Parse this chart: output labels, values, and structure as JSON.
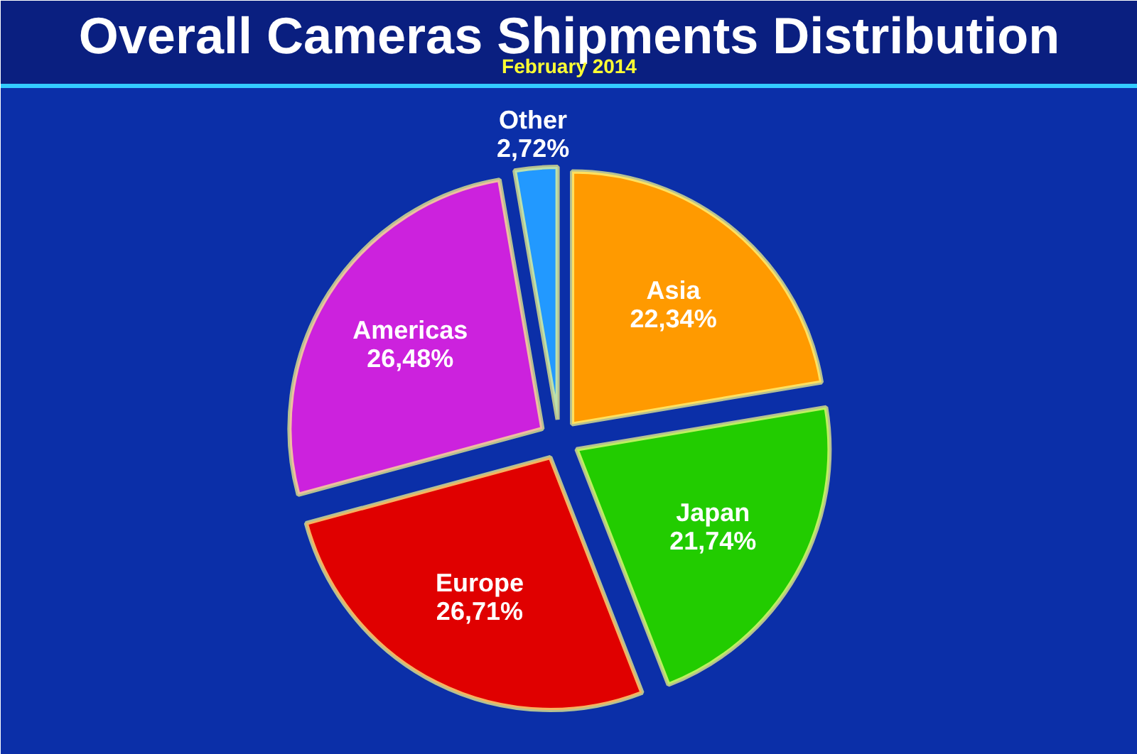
{
  "chart_data": {
    "type": "pie",
    "title": "Overall Cameras Shipments Distribution",
    "subtitle": "February 2014",
    "categories": [
      "Asia",
      "Japan",
      "Europe",
      "Americas",
      "Other"
    ],
    "values": [
      22.34,
      21.74,
      26.71,
      26.48,
      2.72
    ],
    "value_labels": [
      "22,34%",
      "21,74%",
      "26,71%",
      "26,48%",
      "2,72%"
    ],
    "colors": [
      "#ff9a00",
      "#22cc00",
      "#e00000",
      "#cc22dd",
      "#2299ff"
    ]
  }
}
